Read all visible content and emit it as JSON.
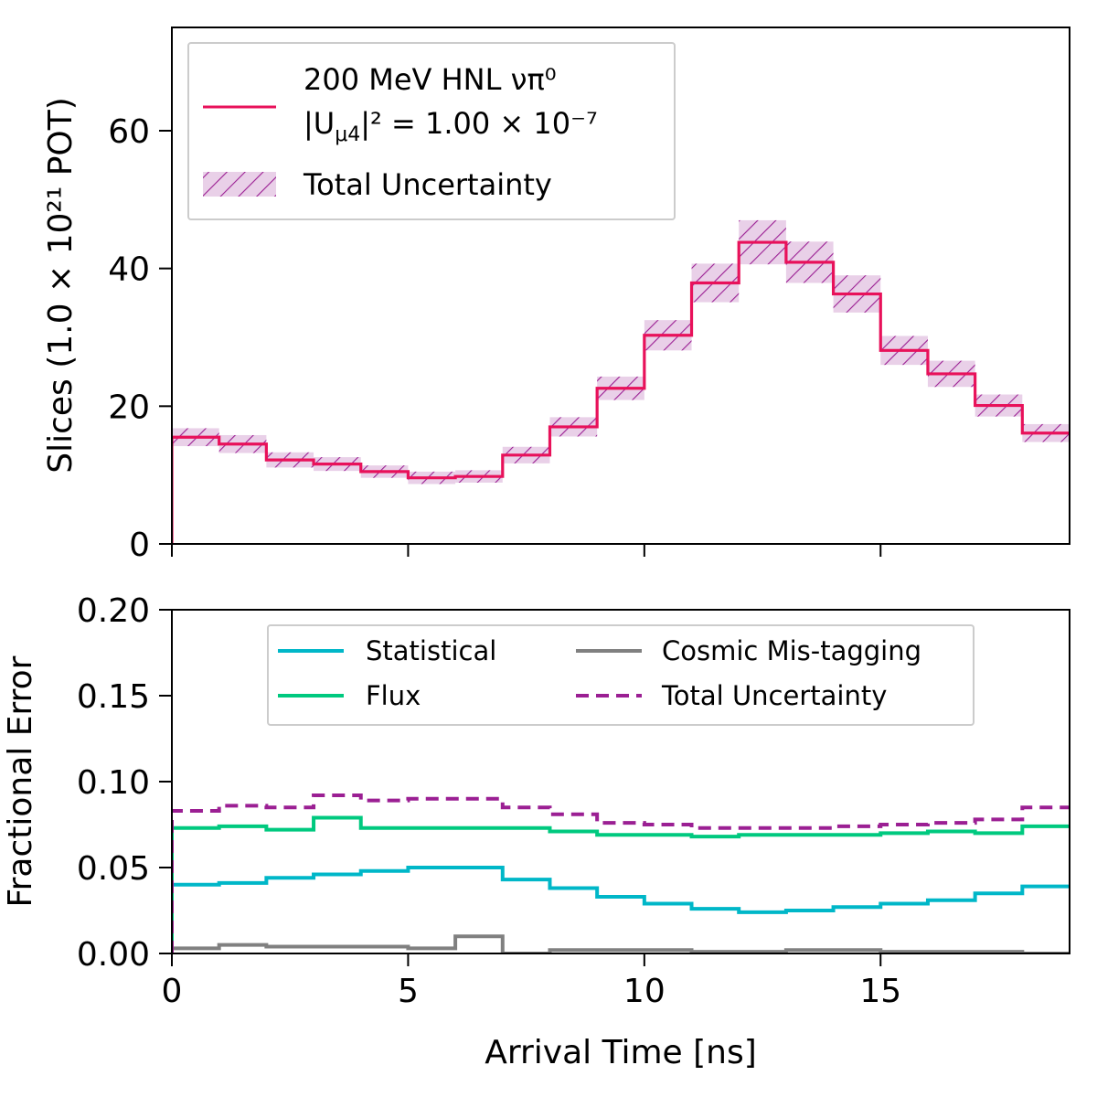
{
  "chart_data": [
    {
      "type": "line",
      "panel": "top",
      "ylabel": "Slices (1.0 × 10²¹ POT)",
      "xlabel": "",
      "xlim": [
        0,
        19
      ],
      "ylim": [
        0,
        75
      ],
      "xticks": [
        0,
        5,
        10,
        15
      ],
      "yticks": [
        0,
        20,
        40,
        60
      ],
      "ytick_labels": [
        "0",
        "20",
        "40",
        "60"
      ],
      "grid": false,
      "legend": {
        "placement": "upper-left",
        "entries": [
          {
            "line1": "200 MeV HNL νπ⁰",
            "line2": "|U",
            "line2_sub": "μ4",
            "line2_rest": "|² = 1.00 × 10⁻⁷",
            "style": "line",
            "color": "#e8115a"
          },
          {
            "label": "Total Uncertainty",
            "style": "hatch",
            "color": "#9b1f93",
            "fill": "#e9d0e8"
          }
        ]
      },
      "bin_edges": [
        0,
        1,
        2,
        3,
        4,
        5,
        6,
        7,
        8,
        9,
        10,
        11,
        12,
        13,
        14,
        15,
        16,
        17,
        18,
        19
      ],
      "series": [
        {
          "values": [
            15.5,
            14.5,
            12.2,
            11.6,
            10.5,
            9.6,
            9.8,
            12.9,
            17.0,
            22.6,
            30.3,
            37.9,
            43.8,
            40.9,
            36.3,
            28.1,
            24.7,
            20.1,
            16.1
          ],
          "uncertainty": [
            1.3,
            1.3,
            1.1,
            1.0,
            0.9,
            0.9,
            0.9,
            1.2,
            1.4,
            1.7,
            2.2,
            2.8,
            3.2,
            3.0,
            2.7,
            2.1,
            1.9,
            1.6,
            1.3
          ]
        }
      ]
    },
    {
      "type": "line",
      "panel": "bottom",
      "ylabel": "Fractional Error",
      "xlabel": "Arrival Time [ns]",
      "xlim": [
        0,
        19
      ],
      "ylim": [
        0,
        0.2
      ],
      "xticks": [
        0,
        5,
        10,
        15
      ],
      "xtick_labels": [
        "0",
        "5",
        "10",
        "15"
      ],
      "yticks": [
        0,
        0.05,
        0.1,
        0.15,
        0.2
      ],
      "ytick_labels": [
        "0.00",
        "0.05",
        "0.10",
        "0.15",
        "0.20"
      ],
      "grid": false,
      "legend_placement": "upper-center",
      "bin_edges": [
        0,
        1,
        2,
        3,
        4,
        5,
        6,
        7,
        8,
        9,
        10,
        11,
        12,
        13,
        14,
        15,
        16,
        17,
        18,
        19
      ],
      "series": [
        {
          "name": "Statistical",
          "color": "#00b7c8",
          "dash": "solid",
          "values": [
            0.04,
            0.041,
            0.044,
            0.046,
            0.048,
            0.05,
            0.05,
            0.043,
            0.038,
            0.033,
            0.029,
            0.026,
            0.024,
            0.025,
            0.027,
            0.029,
            0.031,
            0.035,
            0.039
          ]
        },
        {
          "name": "Flux",
          "color": "#00c97f",
          "dash": "solid",
          "values": [
            0.073,
            0.074,
            0.072,
            0.079,
            0.073,
            0.073,
            0.073,
            0.073,
            0.071,
            0.069,
            0.069,
            0.068,
            0.069,
            0.069,
            0.069,
            0.07,
            0.071,
            0.07,
            0.074
          ]
        },
        {
          "name": "Cosmic Mis-tagging",
          "color": "#808080",
          "dash": "solid",
          "values": [
            0.003,
            0.005,
            0.004,
            0.004,
            0.004,
            0.003,
            0.01,
            0.0,
            0.002,
            0.002,
            0.002,
            0.001,
            0.001,
            0.002,
            0.002,
            0.001,
            0.001,
            0.001,
            0.0
          ]
        },
        {
          "name": "Total Uncertainty",
          "color": "#9b1f93",
          "dash": "dashed",
          "values": [
            0.083,
            0.086,
            0.085,
            0.092,
            0.089,
            0.09,
            0.09,
            0.085,
            0.081,
            0.076,
            0.075,
            0.073,
            0.073,
            0.073,
            0.074,
            0.075,
            0.076,
            0.078,
            0.085
          ]
        }
      ]
    }
  ]
}
